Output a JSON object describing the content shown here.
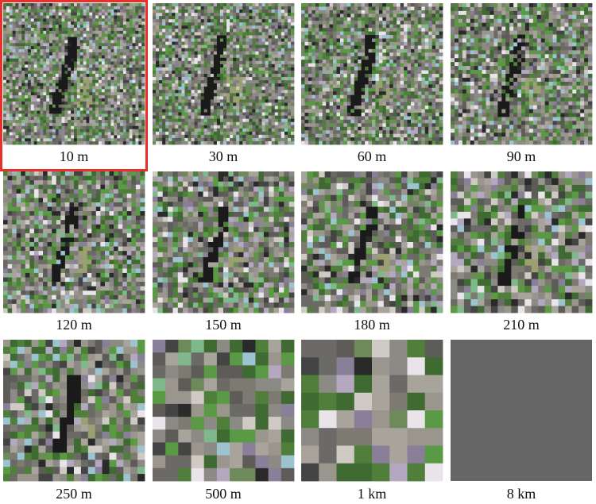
{
  "panels": [
    {
      "label": "10 m"
    },
    {
      "label": "30 m"
    },
    {
      "label": "60 m"
    },
    {
      "label": "90 m"
    },
    {
      "label": "120 m"
    },
    {
      "label": "150 m"
    },
    {
      "label": "180 m"
    },
    {
      "label": "210 m"
    },
    {
      "label": "250 m"
    },
    {
      "label": "500 m"
    },
    {
      "label": "1 km"
    },
    {
      "label": "8 km"
    }
  ]
}
